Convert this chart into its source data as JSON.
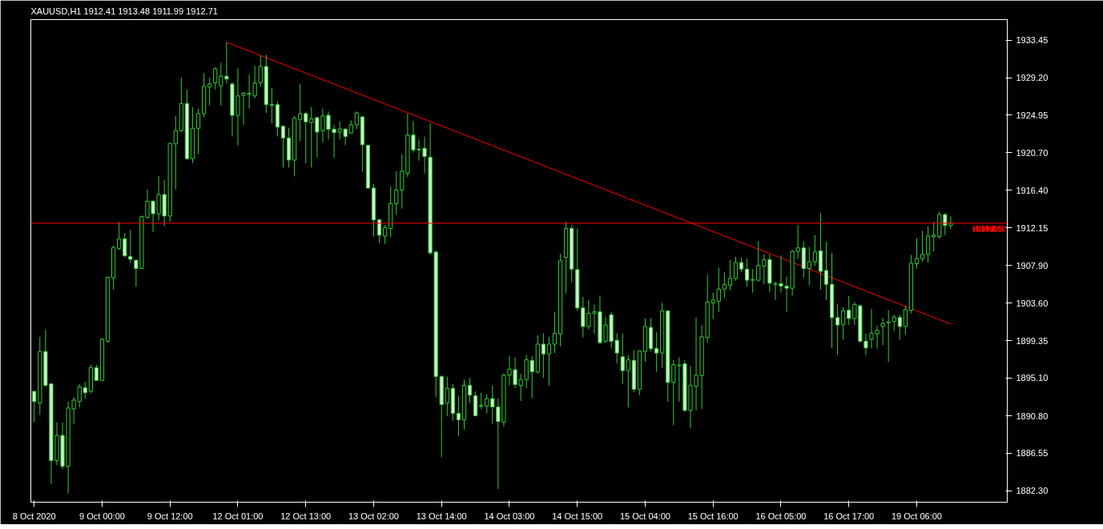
{
  "chart_data": {
    "type": "candlestick",
    "title": "XAUUSD,H1  1912.41 1913.48 1911.99 1912.71",
    "categories": [
      "8 Oct 2020",
      null,
      null,
      null,
      null,
      null,
      null,
      null,
      null,
      null,
      null,
      null,
      "9 Oct 00:00",
      null,
      null,
      null,
      null,
      null,
      null,
      null,
      null,
      null,
      null,
      null,
      "9 Oct 12:00",
      null,
      null,
      null,
      null,
      null,
      null,
      null,
      null,
      null,
      null,
      null,
      "12 Oct 01:00",
      null,
      null,
      null,
      null,
      null,
      null,
      null,
      null,
      null,
      null,
      null,
      "12 Oct 13:00",
      null,
      null,
      null,
      null,
      null,
      null,
      null,
      null,
      null,
      null,
      null,
      "13 Oct 02:00",
      null,
      null,
      null,
      null,
      null,
      null,
      null,
      null,
      null,
      null,
      null,
      "13 Oct 14:00",
      null,
      null,
      null,
      null,
      null,
      null,
      null,
      null,
      null,
      null,
      null,
      "14 Oct 03:00",
      null,
      null,
      null,
      null,
      null,
      null,
      null,
      null,
      null,
      null,
      null,
      "14 Oct 15:00",
      null,
      null,
      null,
      null,
      null,
      null,
      null,
      null,
      null,
      null,
      null,
      "15 Oct 04:00",
      null,
      null,
      null,
      null,
      null,
      null,
      null,
      null,
      null,
      null,
      null,
      "15 Oct 16:00",
      null,
      null,
      null,
      null,
      null,
      null,
      null,
      null,
      null,
      null,
      null,
      "16 Oct 05:00",
      null,
      null,
      null,
      null,
      null,
      null,
      null,
      null,
      null,
      null,
      null,
      "16 Oct 17:00",
      null,
      null,
      null,
      null,
      null,
      null,
      null,
      null,
      null,
      null,
      null,
      "19 Oct 06:00",
      null,
      null,
      null,
      null,
      null,
      null
    ],
    "color": "#32cd32",
    "ohlc": [
      [
        1893.59,
        1893.6,
        1890.08,
        1892.42
      ],
      [
        1892.26,
        1899.78,
        1890.92,
        1898.11
      ],
      [
        1898.11,
        1900.62,
        1894.1,
        1894.26
      ],
      [
        1894.43,
        1894.5,
        1883.06,
        1885.73
      ],
      [
        1885.73,
        1890.08,
        1885.23,
        1888.58
      ],
      [
        1888.58,
        1890.08,
        1884.73,
        1885.07
      ],
      [
        1885.07,
        1892.42,
        1882.0,
        1891.69
      ],
      [
        1891.59,
        1892.93,
        1889.92,
        1892.59
      ],
      [
        1892.42,
        1894.43,
        1891.76,
        1894.1
      ],
      [
        1893.99,
        1894.6,
        1892.76,
        1893.43
      ],
      [
        1893.6,
        1896.61,
        1893.36,
        1896.27
      ],
      [
        1896.27,
        1896.61,
        1894.76,
        1894.83
      ],
      [
        1894.83,
        1899.6,
        1894.76,
        1899.51
      ],
      [
        1899.28,
        1906.6,
        1899.12,
        1906.54
      ],
      [
        1906.47,
        1910.15,
        1905.13,
        1909.92
      ],
      [
        1909.82,
        1912.83,
        1909.65,
        1910.89
      ],
      [
        1910.89,
        1911.55,
        1908.81,
        1908.98
      ],
      [
        1908.91,
        1911.89,
        1908.14,
        1908.58
      ],
      [
        1908.48,
        1908.48,
        1905.47,
        1907.54
      ],
      [
        1907.54,
        1913.56,
        1907.48,
        1913.43
      ],
      [
        1913.33,
        1916.5,
        1913.23,
        1915.17
      ],
      [
        1915.17,
        1915.33,
        1911.66,
        1913.76
      ],
      [
        1913.76,
        1918.01,
        1912.99,
        1915.94
      ],
      [
        1915.94,
        1917.61,
        1912.32,
        1913.5
      ],
      [
        1913.5,
        1921.76,
        1912.83,
        1921.76
      ],
      [
        1921.69,
        1924.86,
        1916.5,
        1923.19
      ],
      [
        1923.19,
        1929.21,
        1923.0,
        1926.27
      ],
      [
        1926.27,
        1927.87,
        1919.85,
        1920.02
      ],
      [
        1920.02,
        1925.87,
        1919.51,
        1923.46
      ],
      [
        1923.46,
        1925.7,
        1920.52,
        1925.13
      ],
      [
        1925.13,
        1929.71,
        1924.7,
        1928.21
      ],
      [
        1928.14,
        1929.21,
        1926.04,
        1928.48
      ],
      [
        1928.61,
        1930.38,
        1927.88,
        1930.22
      ],
      [
        1928.28,
        1930.89,
        1926.04,
        1929.38
      ],
      [
        1929.38,
        1933.23,
        1928.54,
        1929.05
      ],
      [
        1928.48,
        1928.71,
        1922.52,
        1924.93
      ],
      [
        1924.93,
        1930.28,
        1921.52,
        1927.14
      ],
      [
        1927.21,
        1927.61,
        1923.86,
        1927.44
      ],
      [
        1927.31,
        1929.55,
        1925.7,
        1927.44
      ],
      [
        1927.14,
        1930.55,
        1926.87,
        1928.61
      ],
      [
        1928.61,
        1931.72,
        1928.14,
        1930.48
      ],
      [
        1930.48,
        1931.82,
        1925.2,
        1926.14
      ],
      [
        1926.14,
        1928.04,
        1924.03,
        1926.07
      ],
      [
        1926.14,
        1926.54,
        1922.52,
        1923.59
      ],
      [
        1923.69,
        1923.79,
        1919.01,
        1922.36
      ],
      [
        1922.36,
        1923.53,
        1919.01,
        1919.85
      ],
      [
        1919.85,
        1924.86,
        1918.01,
        1924.6
      ],
      [
        1924.46,
        1928.48,
        1922.02,
        1925.13
      ],
      [
        1925.13,
        1925.27,
        1919.51,
        1924.2
      ],
      [
        1924.13,
        1925.87,
        1919.01,
        1924.53
      ],
      [
        1924.66,
        1924.8,
        1920.18,
        1923.03
      ],
      [
        1923.19,
        1925.7,
        1921.86,
        1924.86
      ],
      [
        1924.93,
        1925.37,
        1922.19,
        1923.36
      ],
      [
        1923.36,
        1923.86,
        1920.12,
        1922.96
      ],
      [
        1923.03,
        1924.26,
        1922.19,
        1923.36
      ],
      [
        1923.36,
        1923.53,
        1921.52,
        1922.52
      ],
      [
        1922.93,
        1924.36,
        1922.86,
        1923.86
      ],
      [
        1923.86,
        1925.37,
        1923.36,
        1925.2
      ],
      [
        1924.76,
        1924.8,
        1918.51,
        1921.59
      ],
      [
        1921.52,
        1921.6,
        1916.6,
        1916.67
      ],
      [
        1916.67,
        1917.17,
        1911.16,
        1913.06
      ],
      [
        1913.06,
        1913.16,
        1910.42,
        1911.32
      ],
      [
        1911.22,
        1912.49,
        1910.32,
        1912.16
      ],
      [
        1912.09,
        1916.84,
        1911.09,
        1914.9
      ],
      [
        1914.9,
        1918.58,
        1913.66,
        1916.44
      ],
      [
        1916.44,
        1920.52,
        1914.33,
        1918.58
      ],
      [
        1918.34,
        1925.13,
        1917.91,
        1922.69
      ],
      [
        1922.69,
        1924.26,
        1920.69,
        1921.02
      ],
      [
        1921.09,
        1922.19,
        1919.78,
        1921.02
      ],
      [
        1921.19,
        1922.52,
        1918.34,
        1920.25
      ],
      [
        1920.18,
        1924.03,
        1909.08,
        1909.31
      ],
      [
        1909.41,
        1909.55,
        1892.93,
        1895.27
      ],
      [
        1895.27,
        1895.43,
        1886.07,
        1892.09
      ],
      [
        1892.26,
        1895.27,
        1890.75,
        1893.93
      ],
      [
        1893.93,
        1894.43,
        1890.25,
        1891.09
      ],
      [
        1891.09,
        1893.09,
        1888.48,
        1890.35
      ],
      [
        1890.35,
        1894.93,
        1889.25,
        1894.26
      ],
      [
        1894.26,
        1895.1,
        1892.26,
        1893.16
      ],
      [
        1893.09,
        1893.6,
        1890.75,
        1890.82
      ],
      [
        1891.92,
        1893.43,
        1891.59,
        1891.99
      ],
      [
        1891.92,
        1893.26,
        1891.09,
        1892.76
      ],
      [
        1892.76,
        1894.26,
        1889.92,
        1891.82
      ],
      [
        1891.82,
        1892.76,
        1882.5,
        1890.15
      ],
      [
        1890.08,
        1895.6,
        1889.58,
        1895.43
      ],
      [
        1895.43,
        1897.61,
        1894.26,
        1896.1
      ],
      [
        1896.04,
        1897.44,
        1893.93,
        1894.36
      ],
      [
        1894.26,
        1895.6,
        1892.49,
        1894.93
      ],
      [
        1894.93,
        1897.77,
        1893.93,
        1897.17
      ],
      [
        1897.1,
        1897.61,
        1892.83,
        1895.83
      ],
      [
        1895.77,
        1899.95,
        1895.6,
        1898.95
      ],
      [
        1898.95,
        1900.18,
        1895.1,
        1897.84
      ],
      [
        1897.84,
        1899.78,
        1894.26,
        1898.95
      ],
      [
        1898.95,
        1902.62,
        1897.94,
        1900.18
      ],
      [
        1900.12,
        1909.21,
        1898.71,
        1908.41
      ],
      [
        1908.81,
        1912.83,
        1904.73,
        1912.09
      ],
      [
        1912.09,
        1912.49,
        1905.97,
        1907.47
      ],
      [
        1907.41,
        1912.09,
        1902.72,
        1903.06
      ],
      [
        1903.06,
        1904.3,
        1899.71,
        1900.95
      ],
      [
        1900.95,
        1903.96,
        1900.62,
        1902.45
      ],
      [
        1902.45,
        1903.46,
        1900.12,
        1902.62
      ],
      [
        1902.62,
        1904.46,
        1898.95,
        1899.12
      ],
      [
        1899.28,
        1902.06,
        1899.12,
        1901.12
      ],
      [
        1902.29,
        1902.62,
        1898.45,
        1899.28
      ],
      [
        1899.38,
        1900.18,
        1896.77,
        1897.94
      ],
      [
        1897.51,
        1900.18,
        1894.43,
        1895.94
      ],
      [
        1895.94,
        1897.71,
        1891.76,
        1897.17
      ],
      [
        1897.1,
        1898.28,
        1893.49,
        1893.83
      ],
      [
        1893.83,
        1898.2,
        1893.16,
        1898.18
      ],
      [
        1898.11,
        1901.85,
        1896.94,
        1900.95
      ],
      [
        1900.85,
        1901.85,
        1898.11,
        1898.45
      ],
      [
        1898.45,
        1900.28,
        1895.83,
        1897.94
      ],
      [
        1897.94,
        1903.63,
        1896.27,
        1902.72
      ],
      [
        1902.72,
        1902.8,
        1892.42,
        1894.6
      ],
      [
        1894.6,
        1897.11,
        1889.75,
        1896.61
      ],
      [
        1896.5,
        1897.44,
        1892.42,
        1896.57
      ],
      [
        1896.71,
        1897.11,
        1891.25,
        1891.42
      ],
      [
        1891.42,
        1896.44,
        1889.41,
        1894.26
      ],
      [
        1894.16,
        1901.96,
        1891.42,
        1895.43
      ],
      [
        1895.37,
        1901.12,
        1891.59,
        1899.78
      ],
      [
        1899.71,
        1906.8,
        1899.12,
        1903.73
      ],
      [
        1903.63,
        1904.8,
        1901.79,
        1903.96
      ],
      [
        1903.8,
        1907.64,
        1902.62,
        1905.2
      ],
      [
        1905.2,
        1907.14,
        1904.2,
        1905.74
      ],
      [
        1905.64,
        1908.48,
        1905.07,
        1906.41
      ],
      [
        1906.41,
        1908.88,
        1906.14,
        1908.21
      ],
      [
        1908.21,
        1908.81,
        1907.14,
        1907.47
      ],
      [
        1907.47,
        1908.65,
        1905.47,
        1906.21
      ],
      [
        1906.21,
        1907.47,
        1904.8,
        1906.27
      ],
      [
        1906.21,
        1910.65,
        1906.07,
        1907.88
      ],
      [
        1907.81,
        1909.15,
        1905.74,
        1908.55
      ],
      [
        1908.55,
        1909.15,
        1904.87,
        1905.87
      ],
      [
        1905.74,
        1906.07,
        1903.96,
        1905.8
      ],
      [
        1905.8,
        1908.98,
        1904.8,
        1905.54
      ],
      [
        1905.54,
        1906.64,
        1902.62,
        1905.3
      ],
      [
        1905.3,
        1909.65,
        1904.46,
        1909.48
      ],
      [
        1909.48,
        1912.49,
        1908.65,
        1909.88
      ],
      [
        1909.88,
        1910.65,
        1906.47,
        1907.54
      ],
      [
        1907.54,
        1909.98,
        1905.64,
        1908.31
      ],
      [
        1908.31,
        1911.32,
        1907.81,
        1909.41
      ],
      [
        1909.55,
        1913.83,
        1905.13,
        1907.21
      ],
      [
        1907.31,
        1910.55,
        1903.96,
        1905.74
      ],
      [
        1905.74,
        1909.31,
        1898.51,
        1901.96
      ],
      [
        1901.96,
        1903.53,
        1897.71,
        1901.12
      ],
      [
        1901.19,
        1903.13,
        1899.45,
        1902.72
      ],
      [
        1902.79,
        1904.4,
        1901.12,
        1901.86
      ],
      [
        1901.86,
        1903.73,
        1901.12,
        1903.46
      ],
      [
        1903.3,
        1903.46,
        1899.12,
        1899.28
      ],
      [
        1899.28,
        1900.12,
        1897.71,
        1898.51
      ],
      [
        1899.51,
        1902.96,
        1898.45,
        1900.18
      ],
      [
        1900.12,
        1901.05,
        1898.45,
        1900.52
      ],
      [
        1900.95,
        1901.96,
        1898.85,
        1901.29
      ],
      [
        1901.39,
        1902.79,
        1896.94,
        1901.46
      ],
      [
        1901.52,
        1902.29,
        1900.45,
        1902.02
      ],
      [
        1901.96,
        1902.29,
        1899.45,
        1900.95
      ],
      [
        1900.95,
        1903.3,
        1900.05,
        1902.86
      ],
      [
        1902.79,
        1909.08,
        1902.45,
        1908.14
      ],
      [
        1908.08,
        1910.98,
        1907.54,
        1908.65
      ],
      [
        1908.65,
        1911.82,
        1908.31,
        1909.15
      ],
      [
        1909.15,
        1912.32,
        1908.21,
        1911.22
      ],
      [
        1911.16,
        1912.83,
        1909.48,
        1911.32
      ],
      [
        1911.16,
        1914.0,
        1910.89,
        1913.66
      ],
      [
        1913.66,
        1913.83,
        1911.32,
        1912.42
      ],
      [
        1912.41,
        1913.48,
        1911.99,
        1912.71
      ]
    ],
    "series": [
      {
        "type": "line",
        "color": "#ff0000",
        "values": [
          null,
          null,
          null,
          null,
          null,
          null,
          null,
          null,
          null,
          null,
          null,
          null,
          null,
          null,
          null,
          null,
          null,
          null,
          null,
          null,
          null,
          null,
          null,
          null,
          null,
          null,
          null,
          null,
          null,
          null,
          null,
          null,
          null,
          null,
          1933.23,
          1932.98,
          1932.73,
          1932.48,
          1932.23,
          1931.98,
          1931.73,
          1931.48,
          1931.23,
          1930.98,
          1930.73,
          1930.48,
          1930.23,
          1929.98,
          1929.73,
          1929.48,
          1929.23,
          1928.98,
          1928.73,
          1928.48,
          1928.23,
          1927.98,
          1927.73,
          1927.48,
          1927.23,
          1926.98,
          1926.73,
          1926.48,
          1926.23,
          1925.98,
          1925.73,
          1925.48,
          1925.23,
          1924.98,
          1924.73,
          1924.48,
          1924.23,
          1923.98,
          1923.73,
          1923.48,
          1923.23,
          1922.98,
          1922.73,
          1922.48,
          1922.23,
          1921.98,
          1921.73,
          1921.48,
          1921.23,
          1920.98,
          1920.73,
          1920.48,
          1920.23,
          1919.98,
          1919.73,
          1919.48,
          1919.23,
          1918.98,
          1918.73,
          1918.48,
          1918.23,
          1917.98,
          1917.73,
          1917.48,
          1917.23,
          1916.98,
          1916.73,
          1916.48,
          1916.23,
          1915.98,
          1915.73,
          1915.48,
          1915.23,
          1914.98,
          1914.73,
          1914.48,
          1914.23,
          1913.98,
          1913.73,
          1913.48,
          1913.23,
          1912.98,
          1912.73,
          1912.48,
          1912.23,
          1911.98,
          1911.73,
          1911.48,
          1911.23,
          1910.98,
          1910.73,
          1910.48,
          1910.23,
          1909.98,
          1909.73,
          1909.48,
          1909.23,
          1908.98,
          1908.73,
          1908.48,
          1908.23,
          1907.98,
          1907.73,
          1907.48,
          1907.23,
          1906.98,
          1906.73,
          1906.48,
          1906.23,
          1905.98,
          1905.73,
          1905.48,
          1905.23,
          1904.98,
          1904.73,
          1904.48,
          1904.23,
          1903.98,
          1903.73,
          1903.48,
          1903.23,
          1902.98,
          1902.73,
          1902.48,
          1902.23,
          1901.98,
          1901.73,
          1901.48,
          1901.23
        ]
      }
    ],
    "ref_lines": [
      {
        "axis": "y",
        "value": 1912.68,
        "label": "1912.68",
        "color": "#ff0000"
      }
    ],
    "ylim": [
      1881.0,
      1935.8
    ],
    "yticks": [
      1933.45,
      {
        "value": 1929.2,
        "label": "1929.20"
      },
      1924.95,
      {
        "value": 1920.7,
        "label": "1920.70"
      },
      {
        "value": 1916.4,
        "label": "1916.40"
      },
      1912.15,
      {
        "value": 1907.9,
        "label": "1907.90"
      },
      {
        "value": 1903.6,
        "label": "1903.60"
      },
      1899.35,
      {
        "value": 1895.1,
        "label": "1895.10"
      },
      {
        "value": 1890.8,
        "label": "1890.80"
      },
      1886.55,
      {
        "value": 1882.3,
        "label": "1882.30"
      }
    ],
    "grid": false
  }
}
